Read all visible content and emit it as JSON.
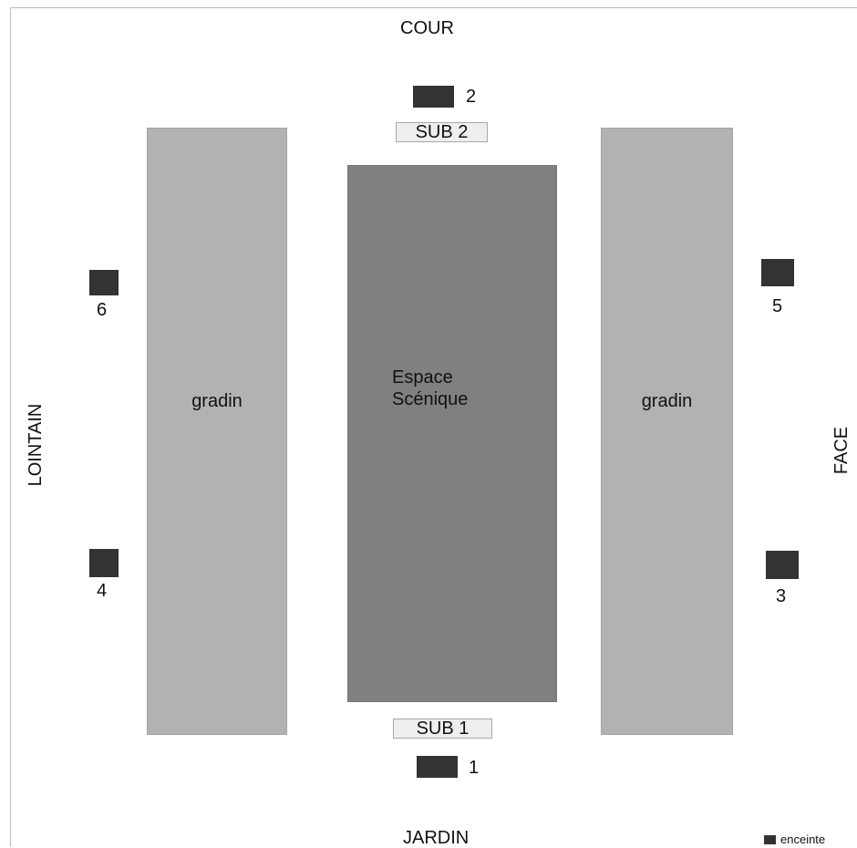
{
  "orientation": {
    "top": "COUR",
    "bottom": "JARDIN",
    "left": "LOINTAIN",
    "right": "FACE"
  },
  "areas": {
    "gradin_left": "gradin",
    "gradin_right": "gradin",
    "stage_line1": "Espace",
    "stage_line2": "Scénique"
  },
  "subs": {
    "top": "SUB 2",
    "bottom": "SUB 1"
  },
  "speakers": {
    "s1": "1",
    "s2": "2",
    "s3": "3",
    "s4": "4",
    "s5": "5",
    "s6": "6"
  },
  "legend": {
    "label": "enceinte",
    "icon": "speaker-square",
    "color": "#333333"
  }
}
